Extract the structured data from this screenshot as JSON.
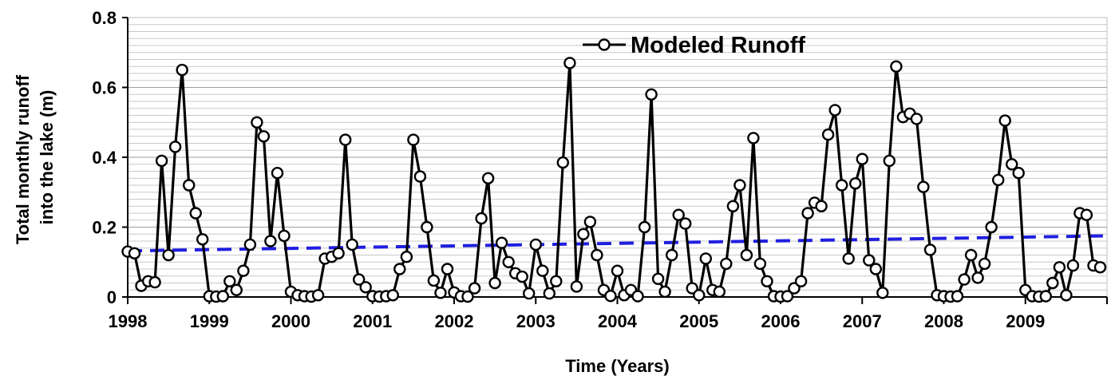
{
  "chart_data": {
    "type": "line",
    "xlabel": "Time (Years)",
    "ylabel_lines": [
      "Total monthly runoff",
      "into the lake (m)"
    ],
    "xlim": [
      1998,
      2010
    ],
    "ylim": [
      0,
      0.8
    ],
    "x_ticks": [
      1998,
      1999,
      2000,
      2001,
      2002,
      2003,
      2004,
      2005,
      2006,
      2007,
      2008,
      2009
    ],
    "y_ticks": [
      0,
      0.2,
      0.4,
      0.6,
      0.8
    ],
    "y_tick_labels": [
      "0",
      "0.2",
      "0.4",
      "0.6",
      "0.8"
    ],
    "grid": "horizontal",
    "legend": "top-center",
    "series": [
      {
        "name": "Modeled Runoff",
        "color": "#000000",
        "marker": "open-circle",
        "x_start": "1998-01",
        "x_step": "month",
        "values": [
          0.13,
          0.125,
          0.032,
          0.045,
          0.042,
          0.39,
          0.12,
          0.43,
          0.65,
          0.32,
          0.24,
          0.165,
          0.002,
          0.001,
          0.002,
          0.045,
          0.02,
          0.075,
          0.15,
          0.5,
          0.46,
          0.16,
          0.355,
          0.175,
          0.015,
          0.005,
          0.002,
          0.001,
          0.005,
          0.11,
          0.115,
          0.125,
          0.45,
          0.15,
          0.05,
          0.028,
          0.002,
          0.001,
          0.002,
          0.005,
          0.08,
          0.115,
          0.45,
          0.345,
          0.2,
          0.047,
          0.012,
          0.08,
          0.013,
          0.002,
          0.001,
          0.025,
          0.225,
          0.34,
          0.04,
          0.155,
          0.1,
          0.068,
          0.058,
          0.01,
          0.15,
          0.075,
          0.01,
          0.045,
          0.385,
          0.67,
          0.03,
          0.18,
          0.215,
          0.12,
          0.02,
          0.003,
          0.075,
          0.005,
          0.02,
          0.002,
          0.2,
          0.58,
          0.052,
          0.015,
          0.12,
          0.235,
          0.21,
          0.025,
          0.005,
          0.11,
          0.02,
          0.015,
          0.095,
          0.26,
          0.32,
          0.12,
          0.455,
          0.095,
          0.045,
          0.002,
          0.001,
          0.002,
          0.025,
          0.045,
          0.24,
          0.27,
          0.26,
          0.465,
          0.535,
          0.32,
          0.11,
          0.325,
          0.395,
          0.105,
          0.08,
          0.012,
          0.39,
          0.66,
          0.515,
          0.525,
          0.51,
          0.315,
          0.135,
          0.005,
          0.002,
          0.001,
          0.002,
          0.05,
          0.12,
          0.055,
          0.095,
          0.2,
          0.335,
          0.505,
          0.38,
          0.355,
          0.02,
          0.002,
          0.001,
          0.002,
          0.04,
          0.085,
          0.005,
          0.09,
          0.24,
          0.235,
          0.09,
          0.085
        ]
      },
      {
        "name": "",
        "color": "#1f1fe0",
        "style": "dashed",
        "type": "trend",
        "x": [
          1998.0,
          2009.99
        ],
        "values": [
          0.132,
          0.175
        ]
      }
    ]
  }
}
